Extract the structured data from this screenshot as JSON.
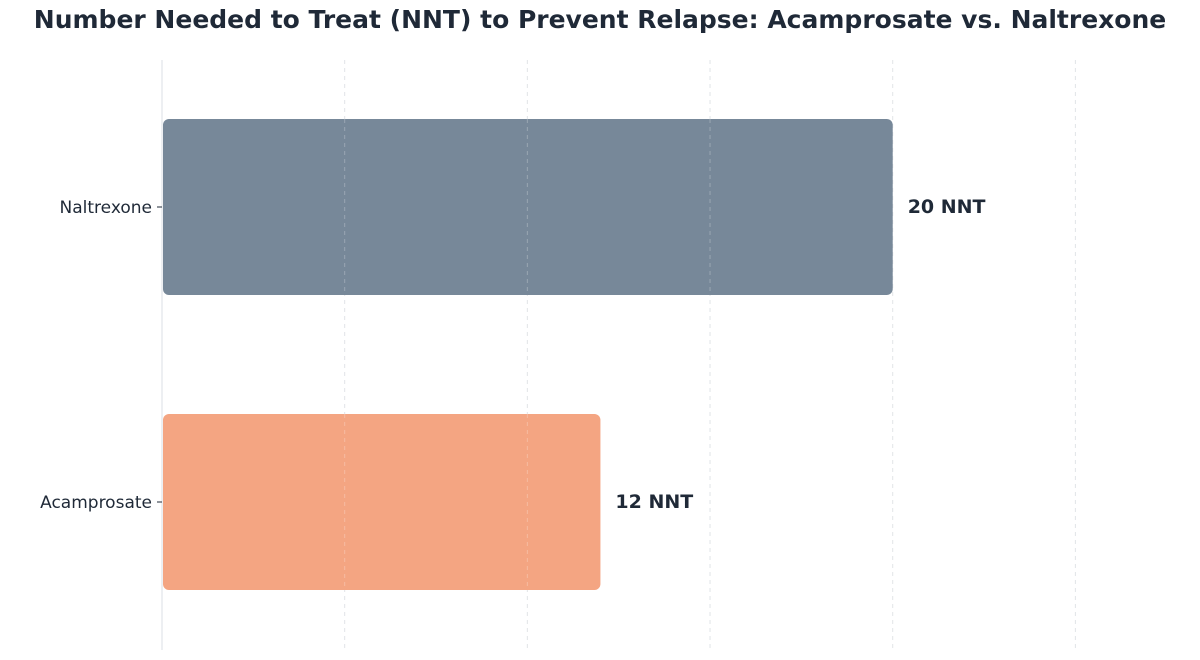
{
  "chart_data": {
    "type": "bar",
    "orientation": "horizontal",
    "title": "Number Needed to Treat (NNT) to Prevent Relapse: Acamprosate vs. Naltrexone",
    "xlabel": "",
    "ylabel": "",
    "categories": [
      "Naltrexone",
      "Acamprosate"
    ],
    "values": [
      20,
      12
    ],
    "value_labels": [
      "20 NNT",
      "12 NNT"
    ],
    "colors": [
      "#778899",
      "#F4A582"
    ],
    "xlim": [
      0,
      28
    ],
    "x_gridlines": [
      0,
      5,
      10,
      15,
      20,
      25
    ],
    "grid": true,
    "legend": "none"
  }
}
